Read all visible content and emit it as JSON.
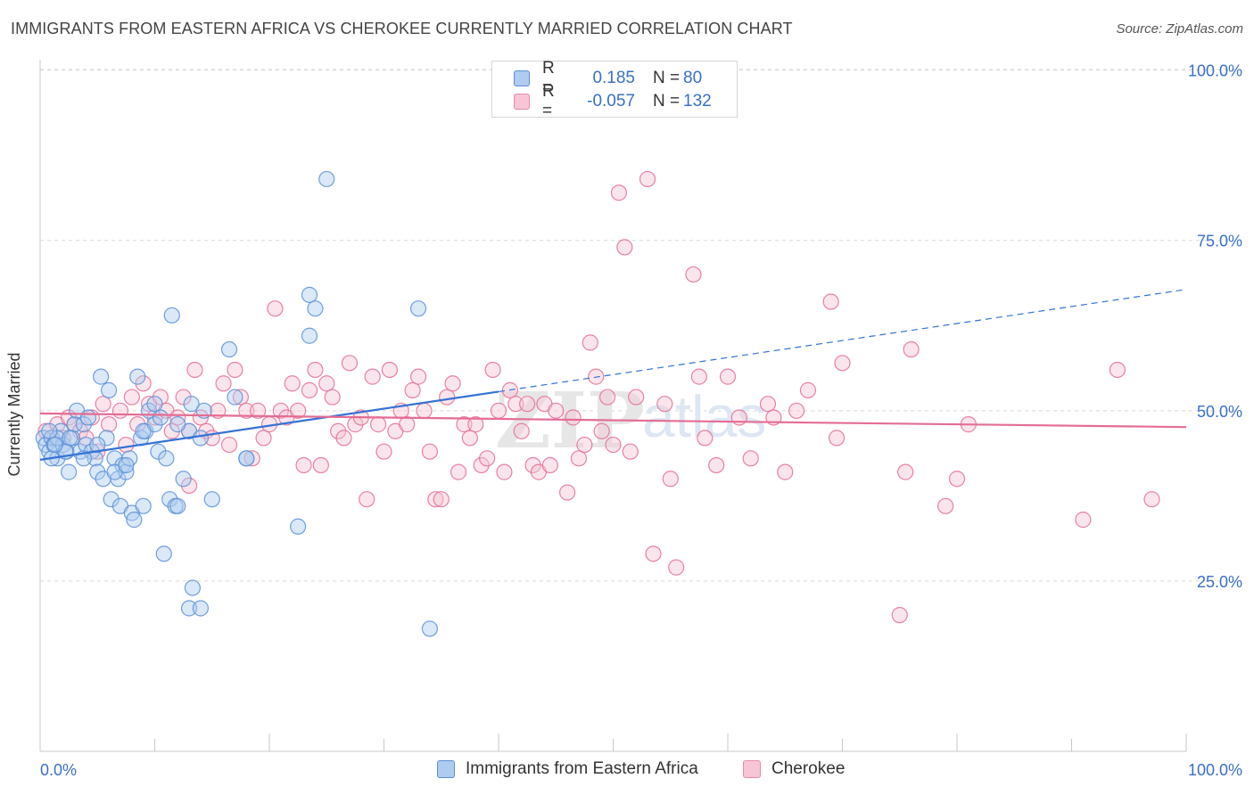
{
  "title": "IMMIGRANTS FROM EASTERN AFRICA VS CHEROKEE CURRENTLY MARRIED CORRELATION CHART",
  "source": "Source: ZipAtlas.com",
  "watermark": {
    "zip": "ZIP",
    "atlas": "atlas"
  },
  "legend_top": [
    {
      "r_label": "R =",
      "r_value": "0.185",
      "n_label": "N =",
      "n_value": "80",
      "color": "#aecbf0",
      "border": "#5b8fd6"
    },
    {
      "r_label": "R =",
      "r_value": "-0.057",
      "n_label": "N =",
      "n_value": "132",
      "color": "#f7c5d5",
      "border": "#e88aa8"
    }
  ],
  "chart_data": {
    "type": "scatter",
    "title": "IMMIGRANTS FROM EASTERN AFRICA VS CHEROKEE CURRENTLY MARRIED CORRELATION CHART",
    "xlabel": "",
    "ylabel": "Currently Married",
    "xlim": [
      0,
      100
    ],
    "ylim": [
      0,
      105
    ],
    "x_tick_labels": [
      "0.0%",
      "100.0%"
    ],
    "y_tick_labels": [
      "25.0%",
      "50.0%",
      "75.0%",
      "100.0%"
    ],
    "y_ticks": [
      25,
      50,
      75,
      100
    ],
    "grid": true,
    "legend_placement": "bottom-center",
    "series": [
      {
        "name": "Immigrants from Eastern Africa",
        "color": "#5b8fd6",
        "fill": "#aecbf0",
        "trend": {
          "x0": 0,
          "y0": 42.8,
          "x1": 100,
          "y1": 67.8,
          "solid_until": 40
        },
        "points": [
          [
            0.3,
            46
          ],
          [
            0.5,
            45
          ],
          [
            0.8,
            44
          ],
          [
            1.0,
            46
          ],
          [
            1.2,
            45
          ],
          [
            1.5,
            43
          ],
          [
            1.8,
            47
          ],
          [
            2.0,
            45
          ],
          [
            2.3,
            44
          ],
          [
            2.5,
            41
          ],
          [
            2.8,
            46
          ],
          [
            3.0,
            48
          ],
          [
            3.2,
            50
          ],
          [
            3.5,
            44
          ],
          [
            3.8,
            48
          ],
          [
            4.0,
            45
          ],
          [
            4.2,
            49
          ],
          [
            4.5,
            44
          ],
          [
            4.8,
            43
          ],
          [
            5.0,
            41
          ],
          [
            5.3,
            55
          ],
          [
            5.5,
            40
          ],
          [
            5.8,
            46
          ],
          [
            6.0,
            53
          ],
          [
            6.2,
            37
          ],
          [
            6.5,
            43
          ],
          [
            6.8,
            40
          ],
          [
            7.0,
            36
          ],
          [
            7.2,
            42
          ],
          [
            7.5,
            41
          ],
          [
            7.8,
            43
          ],
          [
            8.0,
            35
          ],
          [
            8.2,
            34
          ],
          [
            8.5,
            55
          ],
          [
            8.8,
            46
          ],
          [
            9.0,
            36
          ],
          [
            9.2,
            47
          ],
          [
            9.5,
            50
          ],
          [
            10.0,
            48
          ],
          [
            10.3,
            44
          ],
          [
            10.5,
            49
          ],
          [
            10.8,
            29
          ],
          [
            11.0,
            43
          ],
          [
            11.3,
            37
          ],
          [
            11.5,
            64
          ],
          [
            11.8,
            36
          ],
          [
            12.0,
            36
          ],
          [
            12.5,
            40
          ],
          [
            13.0,
            47
          ],
          [
            13.2,
            51
          ],
          [
            13.3,
            24
          ],
          [
            13.0,
            21
          ],
          [
            14.0,
            21
          ],
          [
            14.3,
            50
          ],
          [
            14.0,
            46
          ],
          [
            15.0,
            37
          ],
          [
            16.5,
            59
          ],
          [
            17.0,
            52
          ],
          [
            18.0,
            43
          ],
          [
            18.0,
            43
          ],
          [
            22.5,
            33
          ],
          [
            23.5,
            67
          ],
          [
            23.5,
            61
          ],
          [
            24.0,
            65
          ],
          [
            25.0,
            84
          ],
          [
            33.0,
            65
          ],
          [
            34.0,
            18
          ],
          [
            1.0,
            43
          ],
          [
            1.5,
            46
          ],
          [
            2.2,
            44
          ],
          [
            3.8,
            43
          ],
          [
            5.0,
            45
          ],
          [
            6.5,
            41
          ],
          [
            7.5,
            42
          ],
          [
            9.0,
            47
          ],
          [
            10.0,
            51
          ],
          [
            12.0,
            48
          ],
          [
            2.6,
            46
          ],
          [
            0.8,
            47
          ],
          [
            1.3,
            45
          ]
        ]
      },
      {
        "name": "Cherokee",
        "color": "#e46d94",
        "fill": "#f7c5d5",
        "trend": {
          "x0": 0,
          "y0": 49.6,
          "x1": 100,
          "y1": 47.6
        },
        "points": [
          [
            0.5,
            47
          ],
          [
            1.0,
            46
          ],
          [
            1.5,
            48
          ],
          [
            2.0,
            46
          ],
          [
            2.5,
            49
          ],
          [
            3.0,
            48
          ],
          [
            3.5,
            47
          ],
          [
            4.0,
            46
          ],
          [
            4.5,
            49
          ],
          [
            5.0,
            44
          ],
          [
            5.5,
            51
          ],
          [
            6.0,
            48
          ],
          [
            7.0,
            50
          ],
          [
            7.5,
            45
          ],
          [
            8.0,
            52
          ],
          [
            8.5,
            48
          ],
          [
            9.0,
            54
          ],
          [
            9.5,
            51
          ],
          [
            10.0,
            49
          ],
          [
            10.5,
            52
          ],
          [
            11.0,
            50
          ],
          [
            11.5,
            47
          ],
          [
            12.0,
            49
          ],
          [
            12.5,
            52
          ],
          [
            13.0,
            47
          ],
          [
            13.0,
            39
          ],
          [
            13.5,
            56
          ],
          [
            14.0,
            49
          ],
          [
            14.5,
            47
          ],
          [
            15.0,
            46
          ],
          [
            15.5,
            50
          ],
          [
            16.0,
            54
          ],
          [
            16.5,
            45
          ],
          [
            17.0,
            56
          ],
          [
            17.5,
            52
          ],
          [
            18.0,
            50
          ],
          [
            18.5,
            43
          ],
          [
            19.0,
            50
          ],
          [
            19.5,
            46
          ],
          [
            20.0,
            48
          ],
          [
            20.5,
            65
          ],
          [
            21.0,
            50
          ],
          [
            21.5,
            49
          ],
          [
            22.0,
            54
          ],
          [
            22.5,
            50
          ],
          [
            23.0,
            42
          ],
          [
            23.5,
            53
          ],
          [
            24.0,
            56
          ],
          [
            24.5,
            42
          ],
          [
            25.0,
            54
          ],
          [
            25.5,
            52
          ],
          [
            26.0,
            47
          ],
          [
            26.5,
            46
          ],
          [
            27.0,
            57
          ],
          [
            27.5,
            48
          ],
          [
            28.0,
            49
          ],
          [
            28.5,
            37
          ],
          [
            29.0,
            55
          ],
          [
            29.5,
            48
          ],
          [
            30.0,
            44
          ],
          [
            30.5,
            56
          ],
          [
            31.0,
            47
          ],
          [
            31.5,
            50
          ],
          [
            32.0,
            48
          ],
          [
            32.5,
            53
          ],
          [
            33.0,
            55
          ],
          [
            33.5,
            50
          ],
          [
            34.0,
            44
          ],
          [
            34.5,
            37
          ],
          [
            35.0,
            37
          ],
          [
            35.5,
            52
          ],
          [
            36.0,
            54
          ],
          [
            36.5,
            41
          ],
          [
            37.0,
            48
          ],
          [
            37.5,
            46
          ],
          [
            38.0,
            48
          ],
          [
            38.5,
            42
          ],
          [
            39.0,
            43
          ],
          [
            39.5,
            56
          ],
          [
            40.0,
            50
          ],
          [
            40.5,
            41
          ],
          [
            41.0,
            53
          ],
          [
            41.5,
            51
          ],
          [
            42.0,
            47
          ],
          [
            42.5,
            51
          ],
          [
            43.0,
            42
          ],
          [
            43.5,
            41
          ],
          [
            44.0,
            51
          ],
          [
            44.5,
            42
          ],
          [
            45.0,
            50
          ],
          [
            46.0,
            38
          ],
          [
            46.5,
            49
          ],
          [
            47.0,
            43
          ],
          [
            47.5,
            45
          ],
          [
            48.0,
            60
          ],
          [
            48.5,
            55
          ],
          [
            49.0,
            47
          ],
          [
            49.5,
            52
          ],
          [
            50.0,
            45
          ],
          [
            50.5,
            82
          ],
          [
            51.0,
            74
          ],
          [
            51.5,
            44
          ],
          [
            52.0,
            52
          ],
          [
            53.0,
            84
          ],
          [
            53.5,
            29
          ],
          [
            54.5,
            51
          ],
          [
            55.0,
            40
          ],
          [
            55.5,
            27
          ],
          [
            57.0,
            70
          ],
          [
            57.5,
            55
          ],
          [
            58.0,
            46
          ],
          [
            59.0,
            42
          ],
          [
            60.0,
            55
          ],
          [
            61.0,
            49
          ],
          [
            62.0,
            43
          ],
          [
            63.5,
            51
          ],
          [
            64.0,
            49
          ],
          [
            65.0,
            41
          ],
          [
            66.0,
            50
          ],
          [
            67.0,
            53
          ],
          [
            69.0,
            66
          ],
          [
            69.5,
            46
          ],
          [
            70.0,
            57
          ],
          [
            75.0,
            20
          ],
          [
            75.5,
            41
          ],
          [
            76.0,
            59
          ],
          [
            79.0,
            36
          ],
          [
            80.0,
            40
          ],
          [
            81.0,
            48
          ],
          [
            91.0,
            34
          ],
          [
            94.0,
            56
          ],
          [
            97.0,
            37
          ]
        ]
      }
    ]
  }
}
